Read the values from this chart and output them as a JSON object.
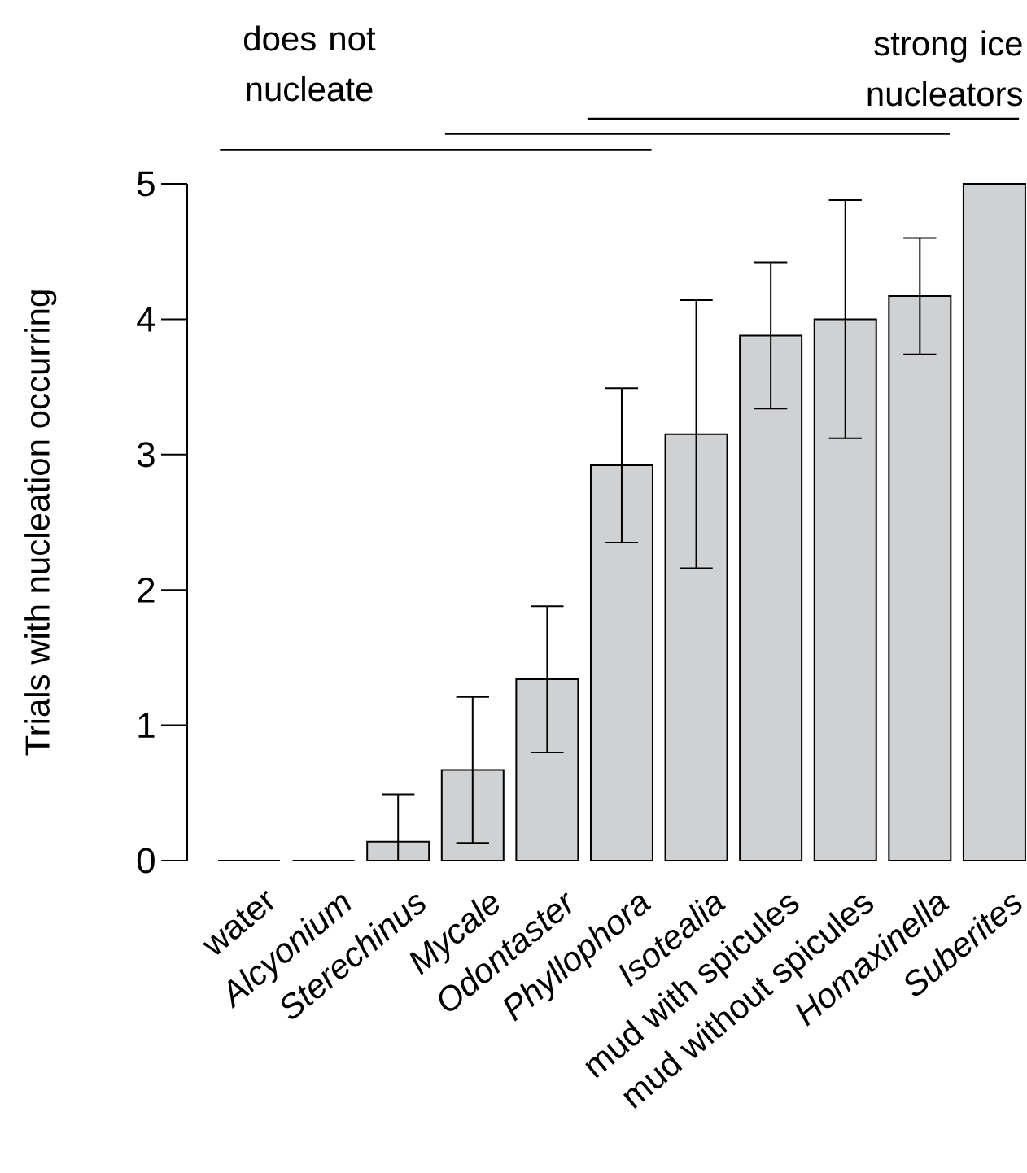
{
  "chart_data": {
    "type": "bar",
    "ylabel": "Trials with nucleation occurring",
    "categories": [
      "water",
      "*Alcyonium*",
      "*Sterechinus*",
      "*Mycale*",
      "*Odontaster*",
      "*Phyllophora*",
      "*Isotealia*",
      "mud with spicules",
      "mud without spicules",
      "*Homaxinella*",
      "*Suberites*"
    ],
    "values": [
      0,
      0,
      0.14,
      0.67,
      1.34,
      2.92,
      3.15,
      3.88,
      4.0,
      4.17,
      5
    ],
    "errors": [
      null,
      null,
      [
        0,
        0.49
      ],
      0.54,
      0.54,
      0.57,
      0.99,
      0.54,
      0.88,
      0.43,
      null
    ],
    "color": "#d0d1d3",
    "ylim": [
      0,
      5
    ],
    "yticks": [
      0,
      1,
      2,
      3,
      4,
      5
    ],
    "annotations": [
      "does not nucleate",
      "strong ice nucleators"
    ]
  }
}
